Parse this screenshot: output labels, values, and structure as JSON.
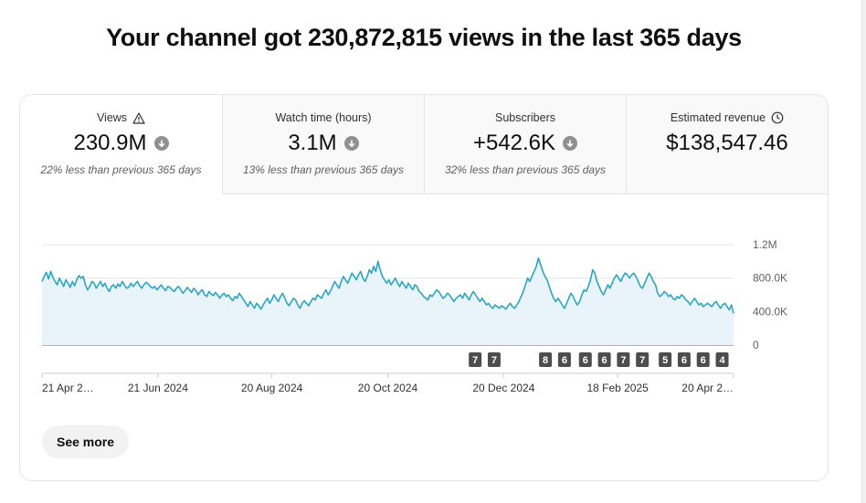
{
  "headline": "Your channel got 230,872,815 views in the last 365 days",
  "tabs": [
    {
      "label": "Views",
      "value": "230.9M",
      "comparison": "22% less than previous 365 days",
      "icon": "warning-icon",
      "trend": "down",
      "active": true
    },
    {
      "label": "Watch time (hours)",
      "value": "3.1M",
      "comparison": "13% less than previous 365 days",
      "trend": "down",
      "active": false
    },
    {
      "label": "Subscribers",
      "value": "+542.6K",
      "comparison": "32% less than previous 365 days",
      "trend": "down",
      "active": false
    },
    {
      "label": "Estimated revenue",
      "value": "$138,547.46",
      "icon": "clock-icon",
      "active": false
    }
  ],
  "see_more_label": "See more",
  "colors": {
    "line": "#2aa5c3",
    "area": "#e8f4fa",
    "badge": "#4d4d4d",
    "trend_icon": "#909090"
  },
  "chart_data": {
    "type": "area",
    "title": "",
    "xlabel": "",
    "ylabel": "",
    "ylim": [
      0,
      1200000
    ],
    "y_ticks": [
      "0",
      "400.0K",
      "800.0K",
      "1.2M"
    ],
    "y_tick_values": [
      0,
      400000,
      800000,
      1200000
    ],
    "x_tick_labels": [
      "21 Apr 2…",
      "21 Jun 2024",
      "20 Aug 2024",
      "20 Oct 2024",
      "20 Dec 2024",
      "18 Feb 2025",
      "20 Apr 2…"
    ],
    "x_tick_days": [
      0,
      61,
      121,
      182,
      243,
      303,
      364
    ],
    "grid": true,
    "series": [
      {
        "x_start": "2024-04-21",
        "x_end": "2025-04-20",
        "values": [
          760000,
          820000,
          870000,
          790000,
          880000,
          810000,
          760000,
          720000,
          800000,
          750000,
          700000,
          780000,
          740000,
          690000,
          760000,
          710000,
          780000,
          830000,
          800000,
          820000,
          720000,
          660000,
          700000,
          760000,
          740000,
          680000,
          720000,
          760000,
          700000,
          740000,
          680000,
          640000,
          700000,
          720000,
          680000,
          730000,
          700000,
          760000,
          720000,
          680000,
          690000,
          740000,
          700000,
          730000,
          760000,
          710000,
          680000,
          720000,
          750000,
          730000,
          700000,
          680000,
          700000,
          660000,
          690000,
          720000,
          680000,
          650000,
          700000,
          690000,
          660000,
          640000,
          680000,
          700000,
          660000,
          620000,
          650000,
          690000,
          660000,
          630000,
          680000,
          650000,
          600000,
          640000,
          660000,
          600000,
          580000,
          640000,
          610000,
          590000,
          630000,
          600000,
          560000,
          600000,
          620000,
          580000,
          600000,
          560000,
          530000,
          580000,
          560000,
          620000,
          580000,
          540000,
          500000,
          460000,
          520000,
          480000,
          440000,
          500000,
          470000,
          430000,
          480000,
          520000,
          560000,
          500000,
          540000,
          600000,
          560000,
          520000,
          580000,
          620000,
          560000,
          500000,
          470000,
          520000,
          560000,
          540000,
          480000,
          440000,
          500000,
          530000,
          500000,
          470000,
          520000,
          560000,
          540000,
          600000,
          580000,
          560000,
          620000,
          660000,
          600000,
          640000,
          700000,
          760000,
          720000,
          680000,
          760000,
          820000,
          780000,
          740000,
          800000,
          860000,
          820000,
          780000,
          840000,
          880000,
          800000,
          760000,
          820000,
          900000,
          860000,
          940000,
          880000,
          1000000,
          900000,
          820000,
          780000,
          740000,
          780000,
          720000,
          760000,
          800000,
          740000,
          700000,
          760000,
          720000,
          680000,
          740000,
          700000,
          660000,
          720000,
          700000,
          640000,
          620000,
          580000,
          560000,
          540000,
          600000,
          580000,
          620000,
          660000,
          640000,
          600000,
          560000,
          580000,
          620000,
          600000,
          560000,
          520000,
          560000,
          580000,
          600000,
          560000,
          620000,
          580000,
          540000,
          600000,
          640000,
          600000,
          560000,
          520000,
          560000,
          520000,
          480000,
          500000,
          460000,
          440000,
          480000,
          460000,
          440000,
          470000,
          450000,
          430000,
          470000,
          500000,
          460000,
          440000,
          480000,
          520000,
          580000,
          640000,
          720000,
          800000,
          760000,
          820000,
          880000,
          940000,
          1040000,
          960000,
          880000,
          820000,
          780000,
          700000,
          620000,
          560000,
          520000,
          560000,
          520000,
          480000,
          440000,
          500000,
          560000,
          620000,
          580000,
          520000,
          480000,
          520000,
          600000,
          660000,
          640000,
          700000,
          780000,
          900000,
          860000,
          760000,
          700000,
          640000,
          600000,
          660000,
          720000,
          680000,
          740000,
          800000,
          840000,
          800000,
          760000,
          820000,
          860000,
          840000,
          800000,
          840000,
          860000,
          820000,
          760000,
          700000,
          680000,
          740000,
          800000,
          860000,
          820000,
          760000,
          720000,
          620000,
          580000,
          600000,
          640000,
          620000,
          580000,
          600000,
          560000,
          540000,
          580000,
          560000,
          600000,
          580000,
          540000,
          520000,
          480000,
          520000,
          560000,
          520000,
          480000,
          500000,
          460000,
          480000,
          500000,
          480000,
          460000,
          500000,
          520000,
          480000,
          440000,
          480000,
          500000,
          460000,
          420000,
          480000,
          380000
        ]
      }
    ],
    "annotations": [
      {
        "label": "7",
        "day": 228
      },
      {
        "label": "7",
        "day": 238
      },
      {
        "label": "8",
        "day": 265
      },
      {
        "label": "6",
        "day": 275
      },
      {
        "label": "6",
        "day": 286
      },
      {
        "label": "6",
        "day": 296
      },
      {
        "label": "7",
        "day": 306
      },
      {
        "label": "7",
        "day": 316
      },
      {
        "label": "5",
        "day": 328
      },
      {
        "label": "6",
        "day": 338
      },
      {
        "label": "6",
        "day": 348
      },
      {
        "label": "4",
        "day": 358
      }
    ]
  }
}
